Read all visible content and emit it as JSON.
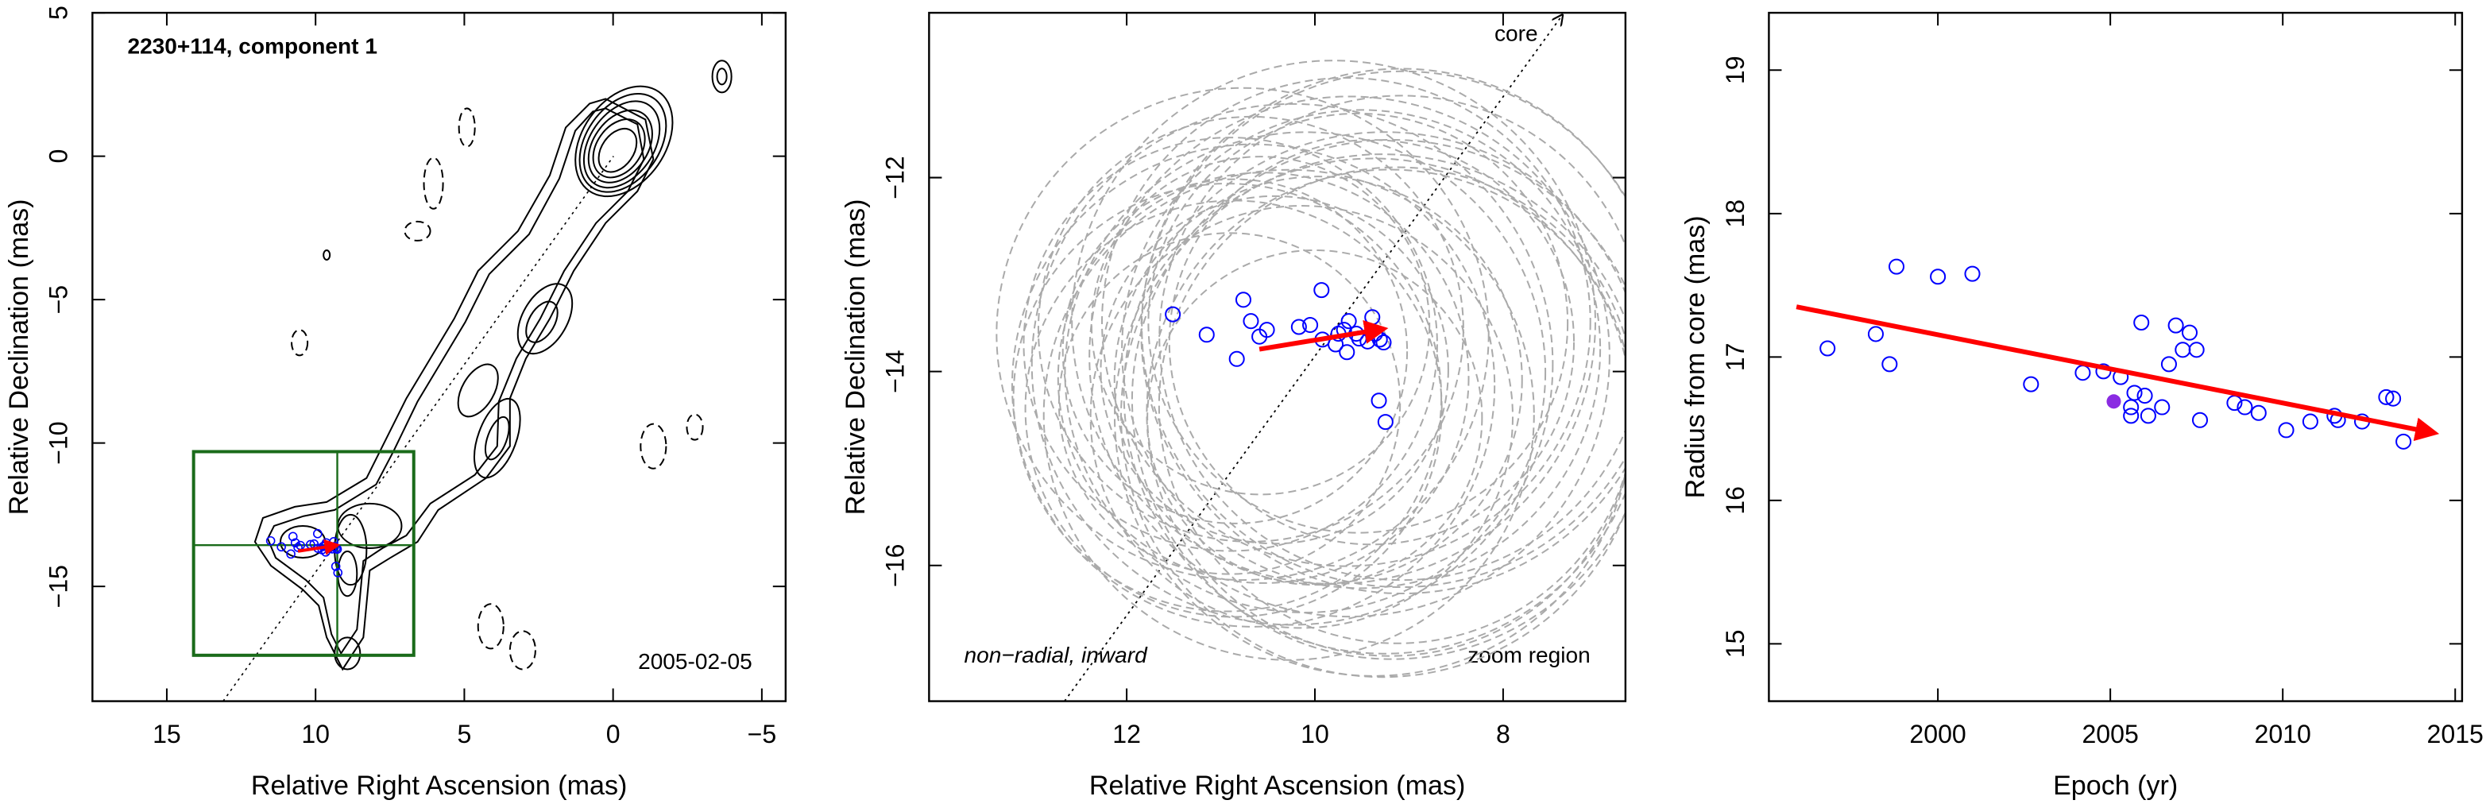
{
  "chart_data": [
    {
      "type": "contour",
      "annotations": [
        "2230+114, component 1",
        "2005-02-05"
      ],
      "xlabel": "Relative Right Ascension (mas)",
      "ylabel": "Relative Declination (mas)",
      "xlim": [
        17.5,
        -5.8
      ],
      "ylim": [
        -19,
        5
      ],
      "xticks": [
        15,
        10,
        5,
        0,
        {
          "value": -5,
          "label": "−5"
        }
      ],
      "yticks": [
        {
          "value": -15,
          "label": "−15"
        },
        {
          "value": -10,
          "label": "−10"
        },
        {
          "value": -5,
          "label": "−5"
        },
        0,
        5
      ],
      "contour_color": "#000000",
      "box_color": "#1a6b1a"
    },
    {
      "type": "scatter",
      "annotations": [
        "core",
        "non−radial, inward",
        "zoom region"
      ],
      "xlabel": "Relative Right Ascension (mas)",
      "ylabel": "Relative Declination (mas)",
      "xlim": [
        14.1,
        6.7
      ],
      "ylim": [
        -17.4,
        -10.3
      ],
      "xticks": [
        12,
        10,
        8
      ],
      "yticks": [
        {
          "value": -12,
          "label": "−12"
        },
        {
          "value": -14,
          "label": "−14"
        },
        {
          "value": -16,
          "label": "−16"
        }
      ],
      "color": "#0000ff",
      "x": [
        11.51,
        11.15,
        10.76,
        10.68,
        10.59,
        10.51,
        10.83,
        10.17,
        10.05,
        9.93,
        9.92,
        9.78,
        9.75,
        9.66,
        9.69,
        9.64,
        9.56,
        9.53,
        9.44,
        9.39,
        9.36,
        9.31,
        9.27,
        9.32,
        9.25
      ],
      "values": [
        -13.41,
        -13.62,
        -13.26,
        -13.48,
        -13.64,
        -13.57,
        -13.87,
        -13.54,
        -13.52,
        -13.16,
        -13.67,
        -13.72,
        -13.61,
        -13.8,
        -13.57,
        -13.48,
        -13.61,
        -13.66,
        -13.69,
        -13.44,
        -13.61,
        -13.67,
        -13.7,
        -14.3,
        -14.52
      ],
      "trend": {
        "x": [
          10.59,
          9.27
        ],
        "values": [
          -13.77,
          -13.56
        ],
        "color": "#ff0000"
      }
    },
    {
      "type": "scatter",
      "xlabel": "Epoch (yr)",
      "ylabel": "Radius from core (mas)",
      "xlim": [
        1995.1,
        2015.2
      ],
      "ylim": [
        14.6,
        19.4
      ],
      "xticks": [
        2000,
        2005,
        2010,
        2015
      ],
      "yticks": [
        15,
        16,
        17,
        18,
        19
      ],
      "color": "#0000ff",
      "x": [
        1996.8,
        1998.2,
        1998.6,
        1998.8,
        2000.0,
        2001.0,
        2002.7,
        2004.2,
        2004.8,
        2005.3,
        2005.6,
        2005.7,
        2005.6,
        2005.9,
        2006.0,
        2006.1,
        2006.5,
        2006.7,
        2006.9,
        2007.1,
        2007.3,
        2007.5,
        2007.6,
        2008.6,
        2008.9,
        2009.3,
        2010.1,
        2010.8,
        2011.5,
        2011.6,
        2012.3,
        2013.0,
        2013.2,
        2013.5
      ],
      "values": [
        17.06,
        17.16,
        16.95,
        17.63,
        17.56,
        17.58,
        16.81,
        16.89,
        16.9,
        16.86,
        16.65,
        16.75,
        16.59,
        17.24,
        16.73,
        16.59,
        16.65,
        16.95,
        17.22,
        17.05,
        17.17,
        17.05,
        16.56,
        16.68,
        16.65,
        16.61,
        16.49,
        16.55,
        16.59,
        16.56,
        16.55,
        16.72,
        16.71,
        16.41
      ],
      "highlight": {
        "x": 2005.1,
        "value": 16.69,
        "color": "#8a2be2"
      },
      "trend": {
        "x": [
          1995.9,
          2014.4
        ],
        "values": [
          17.35,
          16.47
        ],
        "color": "#ff0000"
      }
    }
  ]
}
